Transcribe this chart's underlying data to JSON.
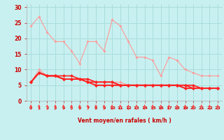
{
  "title": "",
  "xlabel": "Vent moyen/en rafales ( km/h )",
  "background_color": "#c8f0f0",
  "grid_color": "#aadddd",
  "x_values": [
    0,
    1,
    2,
    3,
    4,
    5,
    6,
    7,
    8,
    9,
    10,
    11,
    12,
    13,
    14,
    15,
    16,
    17,
    18,
    19,
    20,
    21,
    22,
    23
  ],
  "series_light": [
    [
      24,
      27,
      22,
      19,
      19,
      16,
      12,
      19,
      19,
      16,
      26,
      24,
      19,
      14,
      14,
      13,
      8,
      14,
      13,
      10,
      9,
      8,
      8,
      8
    ],
    [
      6,
      10,
      8,
      8,
      7,
      7,
      7,
      7,
      6,
      6,
      6,
      5,
      5,
      5,
      5,
      5,
      5,
      5,
      5,
      5,
      5,
      4,
      4,
      4
    ],
    [
      6,
      9,
      8,
      8,
      7,
      7,
      7,
      7,
      6,
      6,
      6,
      6,
      5,
      5,
      5,
      5,
      5,
      5,
      5,
      5,
      5,
      4,
      4,
      4
    ]
  ],
  "series_dark": [
    [
      6,
      9,
      8,
      8,
      8,
      8,
      7,
      7,
      6,
      6,
      6,
      5,
      5,
      5,
      5,
      5,
      5,
      5,
      5,
      5,
      5,
      4,
      4,
      4
    ],
    [
      6,
      9,
      8,
      8,
      7,
      7,
      7,
      6,
      6,
      6,
      6,
      5,
      5,
      5,
      5,
      5,
      5,
      5,
      5,
      5,
      4,
      4,
      4,
      4
    ],
    [
      6,
      9,
      8,
      8,
      7,
      7,
      7,
      6,
      5,
      5,
      5,
      5,
      5,
      5,
      5,
      5,
      5,
      5,
      5,
      4,
      4,
      4,
      4,
      4
    ],
    [
      6,
      9,
      8,
      8,
      7,
      7,
      7,
      6,
      5,
      5,
      5,
      5,
      5,
      5,
      5,
      5,
      5,
      5,
      5,
      4,
      4,
      4,
      4,
      4
    ]
  ],
  "light_color": "#ff9999",
  "dark_color": "#ff2222",
  "arrow_color": "#ff4444",
  "ylim": [
    0,
    31
  ],
  "yticks": [
    0,
    5,
    10,
    15,
    20,
    25,
    30
  ],
  "xlim": [
    -0.5,
    23.5
  ]
}
